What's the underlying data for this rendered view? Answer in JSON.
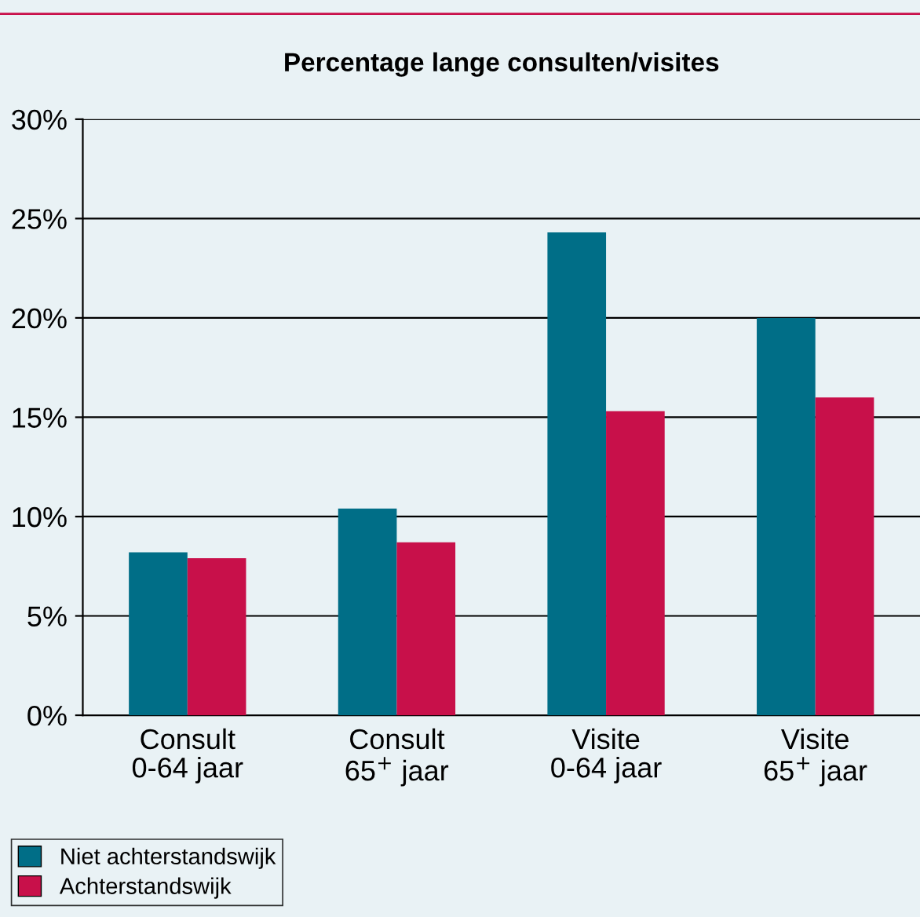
{
  "chart_data": {
    "type": "bar",
    "title": "Percentage lange consulten/visites",
    "categories": [
      "Consult\n0-64 jaar",
      "Consult\n65$^{+}$ jaar",
      "Visite\n0-64 jaar",
      "Visite\n65$^{+}$ jaar"
    ],
    "series": [
      {
        "name": "Niet achterstandswijk",
        "color": "#006e87",
        "values": [
          8.2,
          10.4,
          24.3,
          20.0
        ]
      },
      {
        "name": "Achterstandswijk",
        "color": "#c8104a",
        "values": [
          7.9,
          8.7,
          15.3,
          16.0
        ]
      }
    ],
    "ylim": [
      0,
      30
    ],
    "yticks": [
      {
        "value": 0,
        "label": "0%"
      },
      {
        "value": 5,
        "label": "5%"
      },
      {
        "value": 10,
        "label": "10%"
      },
      {
        "value": 15,
        "label": "15%"
      },
      {
        "value": 20,
        "label": "20%"
      },
      {
        "value": 25,
        "label": "25%"
      },
      {
        "value": 30,
        "label": "30%"
      }
    ],
    "grid": "y",
    "legend": "bottom left"
  }
}
